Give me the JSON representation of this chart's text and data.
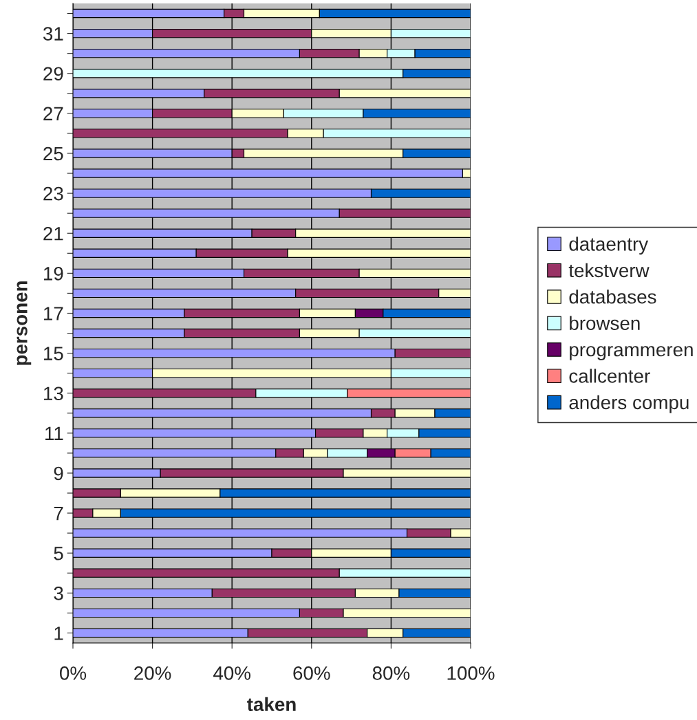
{
  "chart_data": {
    "type": "bar",
    "orientation": "horizontal",
    "stacked": true,
    "xlabel": "taken",
    "ylabel": "personen",
    "categories": [
      null,
      "31",
      null,
      "29",
      null,
      "27",
      null,
      "25",
      null,
      "23",
      null,
      "21",
      null,
      "19",
      null,
      "17",
      null,
      "15",
      null,
      "13",
      null,
      "11",
      null,
      "9",
      null,
      "7",
      null,
      "5",
      null,
      "3",
      null,
      "1"
    ],
    "series": [
      {
        "name": "dataentry",
        "color": "#9999ff",
        "values": [
          38,
          20,
          57,
          0,
          33,
          20,
          0,
          40,
          98,
          75,
          67,
          45,
          31,
          43,
          56,
          28,
          28,
          81,
          20,
          0,
          75,
          61,
          51,
          22,
          0,
          0,
          84,
          50,
          0,
          35,
          57,
          44
        ]
      },
      {
        "name": "tekstverw",
        "color": "#993366",
        "values": [
          5,
          40,
          15,
          0,
          34,
          20,
          54,
          3,
          0,
          0,
          33,
          11,
          23,
          29,
          36,
          29,
          29,
          19,
          0,
          46,
          6,
          12,
          7,
          46,
          12,
          5,
          11,
          10,
          67,
          36,
          11,
          30
        ]
      },
      {
        "name": "databases",
        "color": "#ffffcc",
        "values": [
          19,
          20,
          7,
          0,
          33,
          13,
          9,
          40,
          2,
          0,
          0,
          44,
          46,
          28,
          8,
          14,
          15,
          0,
          60,
          0,
          10,
          6,
          6,
          32,
          25,
          7,
          5,
          20,
          0,
          11,
          32,
          9
        ]
      },
      {
        "name": "browsen",
        "color": "#ccffff",
        "values": [
          0,
          20,
          7,
          83,
          0,
          20,
          37,
          0,
          0,
          0,
          0,
          0,
          0,
          0,
          0,
          0,
          28,
          0,
          20,
          23,
          0,
          8,
          10,
          0,
          0,
          0,
          0,
          0,
          33,
          0,
          0,
          0
        ]
      },
      {
        "name": "programmeren",
        "color": "#660066",
        "values": [
          0,
          0,
          0,
          0,
          0,
          0,
          0,
          0,
          0,
          0,
          0,
          0,
          0,
          0,
          0,
          7,
          0,
          0,
          0,
          0,
          0,
          0,
          7,
          0,
          0,
          0,
          0,
          0,
          0,
          0,
          0,
          0
        ]
      },
      {
        "name": "callcenter",
        "color": "#ff8080",
        "values": [
          0,
          0,
          0,
          0,
          0,
          0,
          0,
          0,
          0,
          0,
          0,
          0,
          0,
          0,
          0,
          0,
          0,
          0,
          0,
          31,
          0,
          0,
          9,
          0,
          0,
          0,
          0,
          0,
          0,
          0,
          0,
          0
        ]
      },
      {
        "name": "anders compu",
        "color": "#0066cc",
        "values": [
          38,
          0,
          14,
          17,
          0,
          27,
          0,
          17,
          0,
          25,
          0,
          0,
          0,
          0,
          0,
          22,
          0,
          0,
          0,
          0,
          9,
          13,
          10,
          0,
          63,
          88,
          0,
          20,
          0,
          18,
          0,
          17
        ]
      }
    ],
    "xlim": [
      0,
      100
    ],
    "xticks": [
      {
        "value": 0,
        "label": "0%"
      },
      {
        "value": 20,
        "label": "20%"
      },
      {
        "value": 40,
        "label": "40%"
      },
      {
        "value": 60,
        "label": "60%"
      },
      {
        "value": 80,
        "label": "80%"
      },
      {
        "value": 100,
        "label": "100%"
      }
    ],
    "grid": "x",
    "legend": "right"
  }
}
